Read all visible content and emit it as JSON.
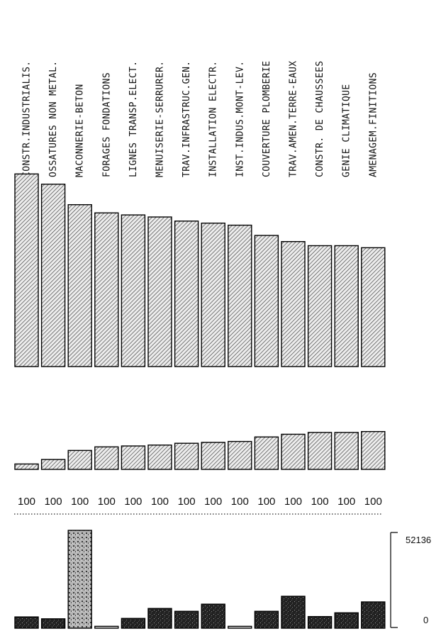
{
  "chart_data": {
    "type": "bar",
    "categories": [
      "CONSTR.INDUSTRIALIS.",
      "OSSATURES NON METAL.",
      "MACONNERIE-BETON",
      "FORAGES FONDATIONS",
      "LIGNES TRANSP.ELECT.",
      "MENUISERIE-SERRURER.",
      "TRAV.INFRASTRUC.GEN.",
      "INSTALLATION ELECTR.",
      "INST.INDUS.MONT-LEV.",
      "COUVERTURE PLOMBERIE",
      "TRAV.AMEN.TERRE-EAUX",
      "CONSTR. DE CHAUSSEES",
      "GENIE CLIMATIQUE",
      "AMENAGEM.FINITIONS"
    ],
    "panels": [
      {
        "type": "bar",
        "title": "",
        "values": [
          94,
          89,
          79,
          75,
          74,
          73,
          71,
          70,
          69,
          64,
          61,
          59,
          59,
          58
        ],
        "ylim": [
          0,
          100
        ]
      },
      {
        "type": "bar",
        "title": "",
        "values": [
          6,
          11,
          21,
          25,
          26,
          27,
          29,
          30,
          31,
          36,
          39,
          41,
          41,
          42
        ],
        "ylim": [
          0,
          100
        ]
      },
      {
        "type": "table",
        "row": [
          "100",
          "100",
          "100",
          "100",
          "100",
          "100",
          "100",
          "100",
          "100",
          "100",
          "100",
          "100",
          "100",
          "100"
        ]
      },
      {
        "type": "bar",
        "title": "",
        "values": [
          6000,
          5000,
          52136,
          1000,
          5200,
          10500,
          9000,
          12800,
          1000,
          9000,
          17000,
          6200,
          8200,
          14000
        ],
        "ylim": [
          0,
          52136
        ],
        "scale_top_label": "52136",
        "scale_bottom_label": "0"
      }
    ],
    "colors": {
      "bar_fill": "#e6e6e6",
      "hatch": "#333333",
      "dark_bar": "#111111",
      "outline": "#000000"
    }
  }
}
